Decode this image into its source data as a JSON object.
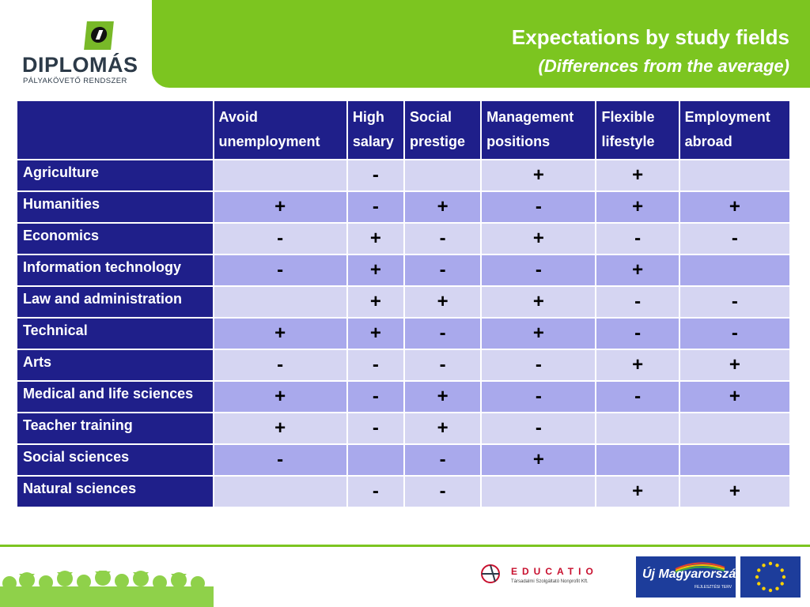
{
  "logo": {
    "name": "DIPLOMÁS",
    "subtitle": "PÁLYAKÖVETŐ  RENDSZER"
  },
  "header": {
    "title": "Expectations by study fields",
    "subtitle": "(Differences from the average)"
  },
  "table": {
    "corner": "",
    "columns": [
      "Avoid unemployment",
      "High salary",
      "Social prestige",
      "Management positions",
      "Flexible lifestyle",
      "Employment abroad"
    ],
    "rows": [
      {
        "label": "Agriculture",
        "cells": [
          "",
          "-",
          "",
          "+",
          "+",
          ""
        ]
      },
      {
        "label": "Humanities",
        "cells": [
          "+",
          "-",
          "+",
          "-",
          "+",
          "+"
        ]
      },
      {
        "label": "Economics",
        "cells": [
          "-",
          "+",
          "-",
          "+",
          "-",
          "-"
        ]
      },
      {
        "label": "Information technology",
        "cells": [
          "-",
          "+",
          "-",
          "-",
          "+",
          ""
        ]
      },
      {
        "label": "Law and administration",
        "cells": [
          "",
          "+",
          "+",
          "+",
          "-",
          "-"
        ]
      },
      {
        "label": "Technical",
        "cells": [
          "+",
          "+",
          "-",
          "+",
          "-",
          "-"
        ]
      },
      {
        "label": "Arts",
        "cells": [
          "-",
          "-",
          "-",
          "-",
          "+",
          "+"
        ]
      },
      {
        "label": "Medical and life sciences",
        "cells": [
          "+",
          "-",
          "+",
          "-",
          "-",
          "+"
        ]
      },
      {
        "label": "Teacher training",
        "cells": [
          "+",
          "-",
          "+",
          "-",
          "",
          ""
        ]
      },
      {
        "label": "Social sciences",
        "cells": [
          "-",
          "",
          "-",
          "+",
          "",
          ""
        ]
      },
      {
        "label": "Natural sciences",
        "cells": [
          "",
          "-",
          "-",
          "",
          "+",
          "+"
        ]
      }
    ]
  },
  "footer": {
    "educatio_name": "EDUCATIO",
    "educatio_sub": "Társadalmi Szolgáltató Nonprofit Kft.",
    "uj_title": "Új Magyarország",
    "uj_sub": "FEJLESZTÉSI TERV"
  },
  "colors": {
    "brand_green": "#7cc520",
    "header_navy": "#1f1f8a",
    "row_light": "#d5d5f2",
    "row_dark": "#a9a9ec"
  }
}
